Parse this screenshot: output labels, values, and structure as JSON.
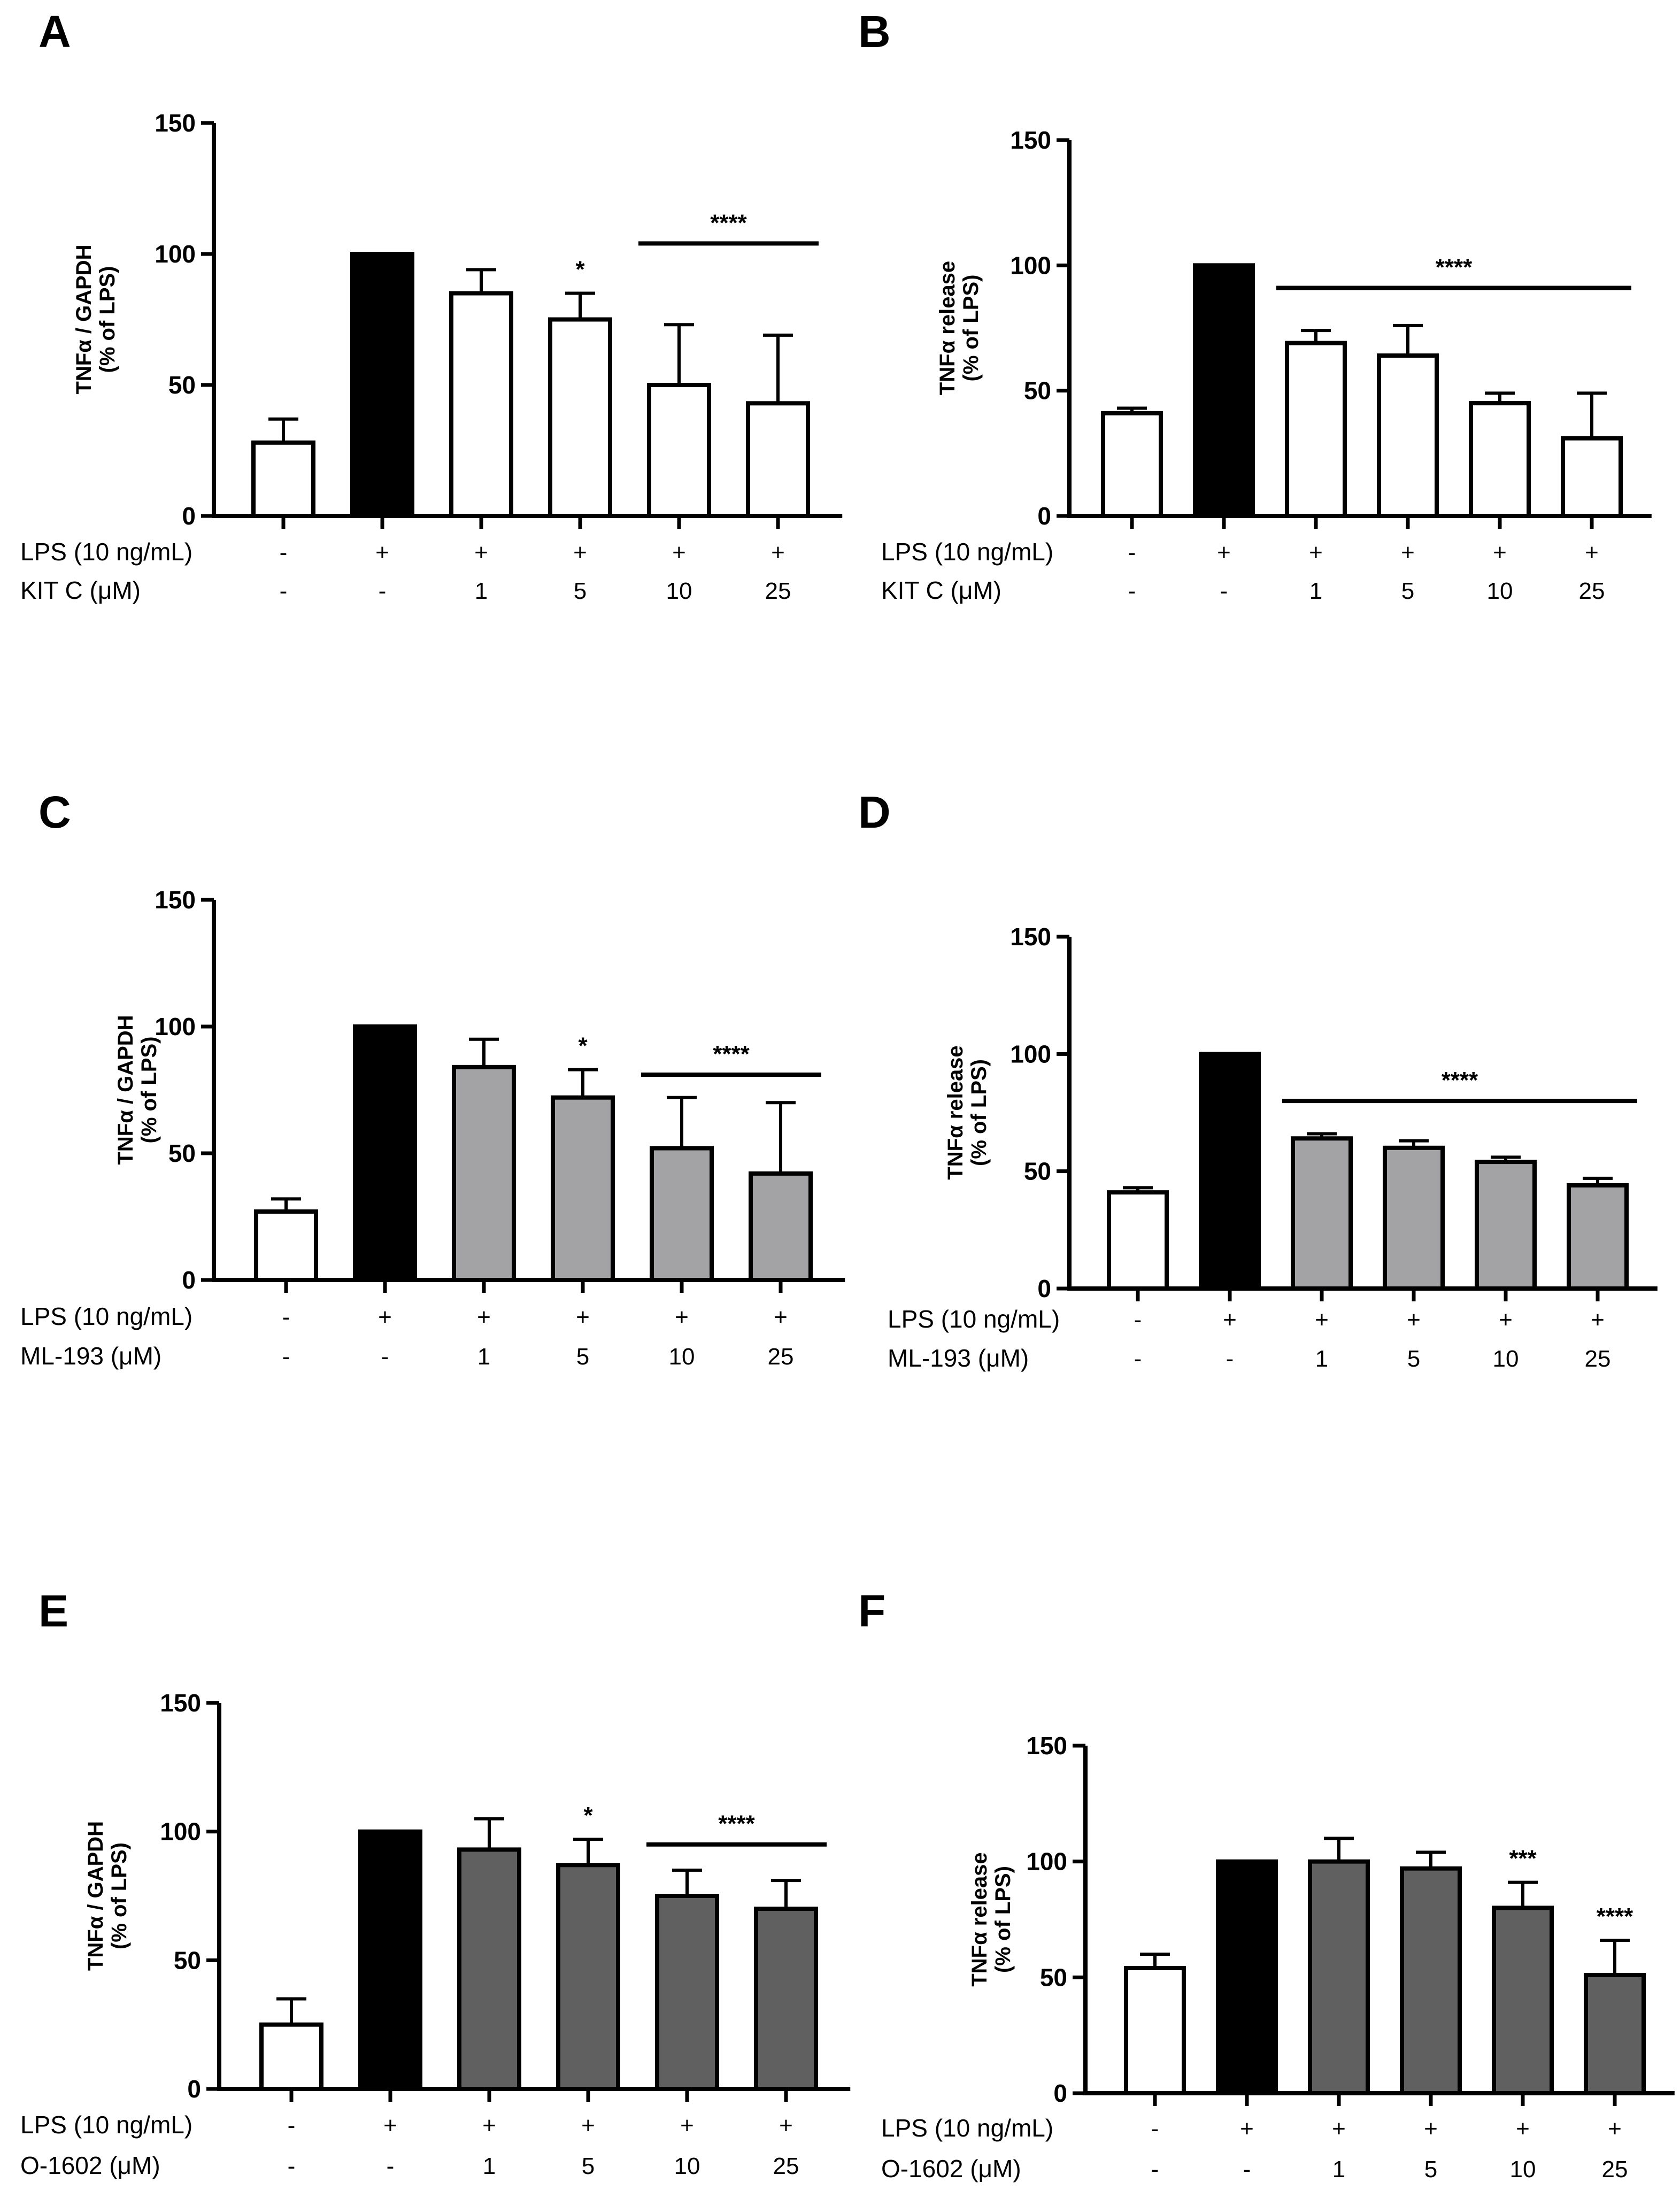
{
  "colors": {
    "control": "#ffffff",
    "lps": "#000000",
    "ml193": "#a3a3a6",
    "o1602": "#606060",
    "axis": "#000000"
  },
  "chart_data": [
    {
      "type": "bar",
      "panel": "A",
      "ylabel": [
        "TNFα / GAPDH",
        "(% of LPS)"
      ],
      "ylim": [
        0,
        150
      ],
      "yticks": [
        0,
        50,
        100,
        150
      ],
      "categories": [
        "1",
        "2",
        "3",
        "4",
        "5",
        "6"
      ],
      "values": [
        28,
        100,
        85,
        75,
        50,
        43
      ],
      "errors": [
        9,
        0,
        9,
        10,
        23,
        26
      ],
      "bar_colors": [
        "control",
        "lps",
        "control",
        "control",
        "control",
        "control"
      ],
      "condition_rows": [
        {
          "label": "LPS (10 ng/mL)",
          "cells": [
            "-",
            "+",
            "+",
            "+",
            "+",
            "+"
          ]
        },
        {
          "label": "KIT C (μM)",
          "cells": [
            "-",
            "-",
            "1",
            "5",
            "10",
            "25"
          ]
        }
      ],
      "significance": [
        {
          "text": "*",
          "bar": 3
        },
        {
          "text": "****",
          "from": 4,
          "to": 5,
          "y": 104
        }
      ]
    },
    {
      "type": "bar",
      "panel": "B",
      "ylabel": [
        "TNFα release",
        "(% of LPS)"
      ],
      "ylim": [
        0,
        150
      ],
      "yticks": [
        0,
        50,
        100,
        150
      ],
      "categories": [
        "1",
        "2",
        "3",
        "4",
        "5",
        "6"
      ],
      "values": [
        41,
        100,
        69,
        64,
        45,
        31
      ],
      "errors": [
        2,
        0,
        5,
        12,
        4,
        18
      ],
      "bar_colors": [
        "control",
        "lps",
        "control",
        "control",
        "control",
        "control"
      ],
      "condition_rows": [
        {
          "label": "LPS (10 ng/mL)",
          "cells": [
            "-",
            "+",
            "+",
            "+",
            "+",
            "+"
          ]
        },
        {
          "label": "KIT C (μM)",
          "cells": [
            "-",
            "-",
            "1",
            "5",
            "10",
            "25"
          ]
        }
      ],
      "significance": [
        {
          "text": "****",
          "from": 2,
          "to": 5,
          "y": 91
        }
      ]
    },
    {
      "type": "bar",
      "panel": "C",
      "ylabel": [
        "TNFα / GAPDH",
        "(% of LPS)"
      ],
      "ylim": [
        0,
        150
      ],
      "yticks": [
        0,
        50,
        100,
        150
      ],
      "categories": [
        "1",
        "2",
        "3",
        "4",
        "5",
        "6"
      ],
      "values": [
        27,
        100,
        84,
        72,
        52,
        42
      ],
      "errors": [
        5,
        0,
        11,
        11,
        20,
        28
      ],
      "bar_colors": [
        "control",
        "lps",
        "ml193",
        "ml193",
        "ml193",
        "ml193"
      ],
      "condition_rows": [
        {
          "label": "LPS (10 ng/mL)",
          "cells": [
            "-",
            "+",
            "+",
            "+",
            "+",
            "+"
          ]
        },
        {
          "label": "ML-193 (μM)",
          "cells": [
            "-",
            "-",
            "1",
            "5",
            "10",
            "25"
          ]
        }
      ],
      "significance": [
        {
          "text": "*",
          "bar": 3
        },
        {
          "text": "****",
          "from": 4,
          "to": 5,
          "y": 81
        }
      ]
    },
    {
      "type": "bar",
      "panel": "D",
      "ylabel": [
        "TNFα release",
        "(% of LPS)"
      ],
      "ylim": [
        0,
        150
      ],
      "yticks": [
        0,
        50,
        100,
        150
      ],
      "categories": [
        "1",
        "2",
        "3",
        "4",
        "5",
        "6"
      ],
      "values": [
        41,
        100,
        64,
        60,
        54,
        44
      ],
      "errors": [
        2,
        0,
        2,
        3,
        2,
        3
      ],
      "bar_colors": [
        "control",
        "lps",
        "ml193",
        "ml193",
        "ml193",
        "ml193"
      ],
      "condition_rows": [
        {
          "label": "LPS (10 ng/mL)",
          "cells": [
            "-",
            "+",
            "+",
            "+",
            "+",
            "+"
          ]
        },
        {
          "label": "ML-193 (μM)",
          "cells": [
            "-",
            "-",
            "1",
            "5",
            "10",
            "25"
          ]
        }
      ],
      "significance": [
        {
          "text": "****",
          "from": 2,
          "to": 5,
          "y": 80
        }
      ]
    },
    {
      "type": "bar",
      "panel": "E",
      "ylabel": [
        "TNFα / GAPDH",
        "(% of LPS)"
      ],
      "ylim": [
        0,
        150
      ],
      "yticks": [
        0,
        50,
        100,
        150
      ],
      "categories": [
        "1",
        "2",
        "3",
        "4",
        "5",
        "6"
      ],
      "values": [
        25,
        100,
        93,
        87,
        75,
        70
      ],
      "errors": [
        10,
        0,
        12,
        10,
        10,
        11
      ],
      "bar_colors": [
        "control",
        "lps",
        "o1602",
        "o1602",
        "o1602",
        "o1602"
      ],
      "condition_rows": [
        {
          "label": "LPS (10 ng/mL)",
          "cells": [
            "-",
            "+",
            "+",
            "+",
            "+",
            "+"
          ]
        },
        {
          "label": "O-1602 (μM)",
          "cells": [
            "-",
            "-",
            "1",
            "5",
            "10",
            "25"
          ]
        }
      ],
      "significance": [
        {
          "text": "*",
          "bar": 3
        },
        {
          "text": "****",
          "from": 4,
          "to": 5,
          "y": 95
        }
      ]
    },
    {
      "type": "bar",
      "panel": "F",
      "ylabel": [
        "TNFα release",
        "(% of LPS)"
      ],
      "ylim": [
        0,
        150
      ],
      "yticks": [
        0,
        50,
        100,
        150
      ],
      "categories": [
        "1",
        "2",
        "3",
        "4",
        "5",
        "6"
      ],
      "values": [
        54,
        100,
        100,
        97,
        80,
        51
      ],
      "errors": [
        6,
        0,
        10,
        7,
        11,
        15
      ],
      "bar_colors": [
        "control",
        "lps",
        "o1602",
        "o1602",
        "o1602",
        "o1602"
      ],
      "condition_rows": [
        {
          "label": "LPS (10 ng/mL)",
          "cells": [
            "-",
            "+",
            "+",
            "+",
            "+",
            "+"
          ]
        },
        {
          "label": "O-1602 (μM)",
          "cells": [
            "-",
            "-",
            "1",
            "5",
            "10",
            "25"
          ]
        }
      ],
      "significance": [
        {
          "text": "***",
          "bar": 4
        },
        {
          "text": "****",
          "bar": 5
        }
      ]
    }
  ]
}
